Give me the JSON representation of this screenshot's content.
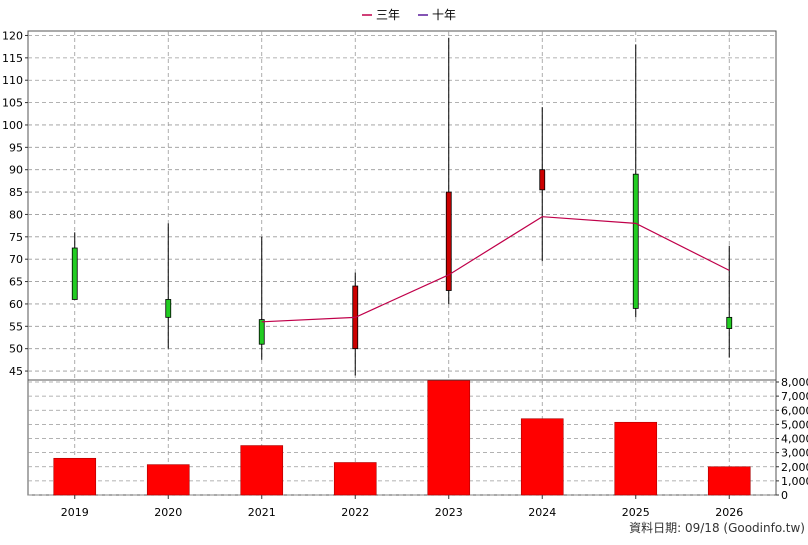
{
  "legend": {
    "items": [
      {
        "label": "三年",
        "color": "#c0004a"
      },
      {
        "label": "十年",
        "color": "#5a1a9a"
      }
    ]
  },
  "footer": {
    "text": "資料日期: 09/18 (Goodinfo.tw)"
  },
  "chart_data": [
    {
      "type": "candlestick",
      "categories": [
        "2019",
        "2020",
        "2021",
        "2022",
        "2023",
        "2024",
        "2025",
        "2026"
      ],
      "ylim": [
        43,
        121
      ],
      "y_ticks": [
        45,
        50,
        55,
        60,
        65,
        70,
        75,
        80,
        85,
        90,
        95,
        100,
        105,
        110,
        115,
        120
      ],
      "grid": true,
      "candles": [
        {
          "x": "2019",
          "open": 61,
          "close": 72.5,
          "high": 76,
          "low": 61,
          "color": "#22cc22"
        },
        {
          "x": "2020",
          "open": 61,
          "close": 57,
          "high": 78,
          "low": 50,
          "color": "#22cc22"
        },
        {
          "x": "2021",
          "open": 56.5,
          "close": 51,
          "high": 75,
          "low": 47.5,
          "color": "#22cc22"
        },
        {
          "x": "2022",
          "open": 50,
          "close": 64,
          "high": 67,
          "low": 44,
          "color": "#cc0000"
        },
        {
          "x": "2023",
          "open": 63,
          "close": 85,
          "high": 119.5,
          "low": 60,
          "color": "#cc0000"
        },
        {
          "x": "2024",
          "open": 85.5,
          "close": 90,
          "high": 104,
          "low": 69.5,
          "color": "#cc0000"
        },
        {
          "x": "2025",
          "open": 89,
          "close": 59,
          "high": 118,
          "low": 57,
          "color": "#22cc22"
        },
        {
          "x": "2026",
          "open": 57,
          "close": 54.5,
          "high": 73,
          "low": 48,
          "color": "#22cc22"
        }
      ],
      "series": [
        {
          "name": "三年",
          "color": "#c0004a",
          "x": [
            "2021",
            "2022",
            "2023",
            "2024",
            "2025",
            "2026"
          ],
          "values": [
            56,
            57,
            66.5,
            79.5,
            78,
            67.5
          ]
        }
      ]
    },
    {
      "type": "bar",
      "categories": [
        "2019",
        "2020",
        "2021",
        "2022",
        "2023",
        "2024",
        "2025",
        "2026"
      ],
      "values": [
        2600,
        2150,
        3500,
        2300,
        8100,
        5400,
        5150,
        2000
      ],
      "color": "#ff0000",
      "ylim": [
        0,
        8000
      ],
      "y_ticks": [
        "0",
        "1,000",
        "2,000",
        "3,000",
        "4,000",
        "5,000",
        "6,000",
        "7,000",
        "8,000"
      ],
      "y_tick_values": [
        0,
        1000,
        2000,
        3000,
        4000,
        5000,
        6000,
        7000,
        8000
      ],
      "grid": true
    }
  ]
}
